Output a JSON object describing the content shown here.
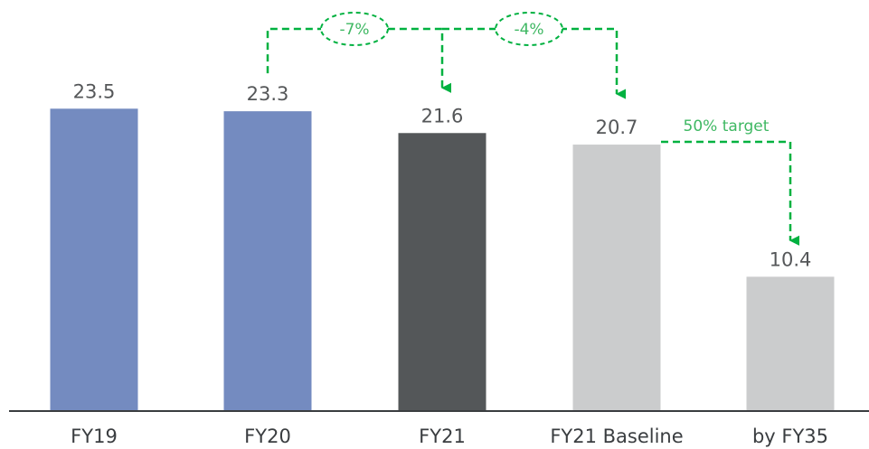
{
  "chart_data": {
    "type": "bar",
    "categories": [
      "FY19",
      "FY20",
      "FY21",
      "FY21 Baseline",
      "by FY35"
    ],
    "values": [
      23.5,
      23.3,
      21.6,
      20.7,
      10.4
    ],
    "value_labels": [
      "23.5",
      "23.3",
      "21.6",
      "20.7",
      "10.4"
    ],
    "bar_colors": [
      "#748bc0",
      "#748bc0",
      "#545759",
      "#cbcccd",
      "#cbcccd"
    ],
    "ylim": [
      0,
      25.5
    ],
    "title": "",
    "xlabel": "",
    "ylabel": "",
    "grid": false,
    "annotations": [
      {
        "label": "-7%",
        "from": "FY20",
        "to": "FY21"
      },
      {
        "label": "-4%",
        "from": "FY21",
        "to": "FY21 Baseline"
      },
      {
        "label": "50% target",
        "from": "FY21 Baseline",
        "to": "by FY35"
      }
    ],
    "annotation_color": "#00b140",
    "annotation_text_color": "#3fb863"
  }
}
